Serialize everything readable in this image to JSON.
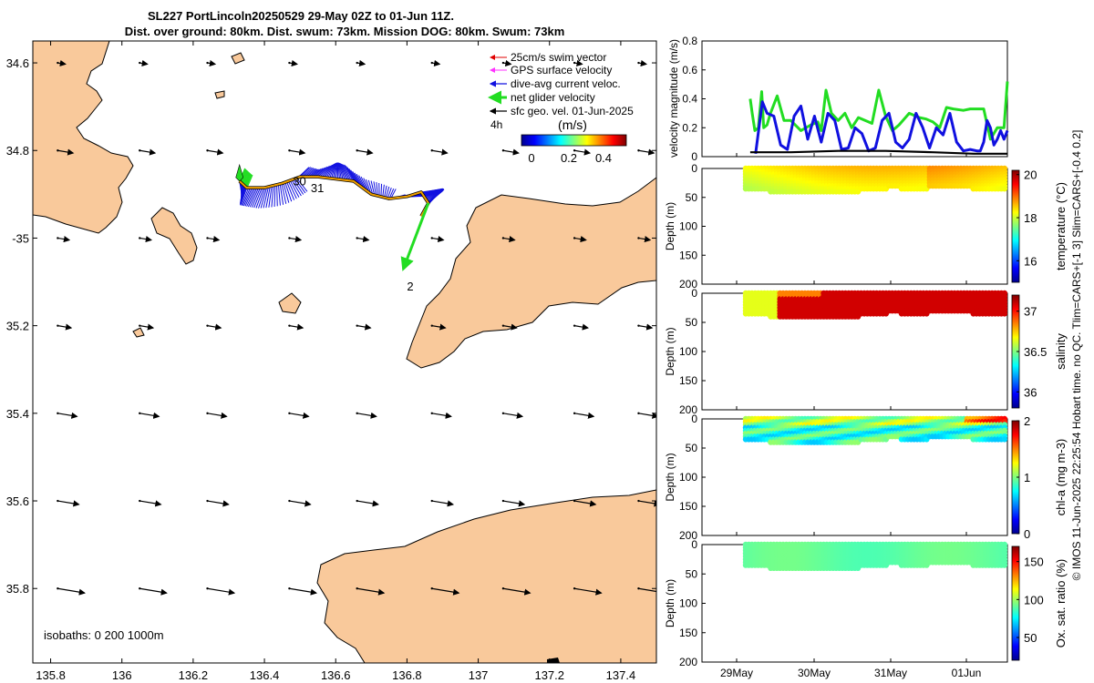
{
  "header": {
    "title_line1": "SL227 PortLincoln20250529 29-May 02Z to 01-Jun 11Z.",
    "title_line2": "Dist. over ground: 80km. Dist. swum: 73km. Mission DOG: 80km. Swum: 73km"
  },
  "side_note": "© IMOS 11-Jun-2025 22:25:54 Hobart time. no QC. Tlim=CARS+[-1 3] Slim=CARS+[-0.4 0.2]",
  "colors": {
    "land": "#f9c99b",
    "swim": "#e00000",
    "gps": "#ff33ff",
    "current": "#1010e0",
    "net": "#22dd22",
    "geo": "#000000",
    "track": "#f0a000"
  },
  "chart_data": [
    {
      "type": "map",
      "title": "SL227 PortLincoln20250529 29-May 02Z to 01-Jun 11Z.",
      "xlim": [
        135.75,
        137.5
      ],
      "ylim": [
        -35.97,
        -34.55
      ],
      "xticks": [
        135.8,
        136,
        136.2,
        136.4,
        136.6,
        136.8,
        137,
        137.2,
        137.4
      ],
      "xtick_labels": [
        "135.8",
        "136",
        "136.2",
        "136.4",
        "136.6",
        "136.8",
        "137",
        "137.2",
        "137.4"
      ],
      "yticks": [
        -34.6,
        -34.8,
        -35,
        -35.2,
        -35.4,
        -35.6,
        -35.8
      ],
      "ytick_labels": [
        "34.6",
        "34.8",
        "-35",
        "35.2",
        "35.4",
        "35.6",
        "35.8"
      ],
      "legend": {
        "items": [
          "25cm/s swim vector",
          "GPS surface velocity",
          "dive-avg current veloc.",
          "net glider velocity",
          "sfc geo. vel. 01-Jun-2025"
        ],
        "interval_label": "4h",
        "colorbar_label": "(m/s)",
        "colorbar_ticks": [
          "0",
          "0.2",
          "0.4"
        ],
        "colorbar_range": [
          -0.05,
          0.55
        ]
      },
      "isobaths_label": "isobaths: 0   200  1000m",
      "track": [
        [
          136.33,
          -34.87
        ],
        [
          136.35,
          -34.885
        ],
        [
          136.4,
          -34.885
        ],
        [
          136.45,
          -34.875
        ],
        [
          136.5,
          -34.86
        ],
        [
          136.55,
          -34.86
        ],
        [
          136.6,
          -34.865
        ],
        [
          136.65,
          -34.87
        ],
        [
          136.7,
          -34.9
        ],
        [
          136.75,
          -34.91
        ],
        [
          136.8,
          -34.905
        ],
        [
          136.84,
          -34.895
        ],
        [
          136.86,
          -34.92
        ],
        [
          136.84,
          -34.95
        ]
      ],
      "day_labels": [
        {
          "text": "30",
          "lon": 136.48,
          "lat": -34.88
        },
        {
          "text": "31",
          "lon": 136.53,
          "lat": -34.895
        },
        {
          "text": "2",
          "lon": 136.8,
          "lat": -35.12
        }
      ],
      "geo_arrow_lons": [
        135.82,
        136.05,
        136.24,
        136.47,
        136.66,
        136.87,
        137.07,
        137.27,
        137.45
      ],
      "geo_arrow_lats": [
        -34.6,
        -34.8,
        -35.0,
        -35.2,
        -35.4,
        -35.6,
        -35.8
      ],
      "geo_arrow_scale": [
        0.02,
        0.04,
        0.03,
        0.035,
        0.05,
        0.055,
        0.07
      ],
      "net_arrow": {
        "from": [
          136.86,
          -34.92
        ],
        "to": [
          136.79,
          -35.07
        ]
      }
    },
    {
      "type": "line",
      "ylabel": "velocity magnitude (m/s)",
      "ylim": [
        0,
        0.8
      ],
      "yticks": [
        0,
        0.2,
        0.4,
        0.6,
        0.8
      ],
      "ytick_labels": [
        "0",
        "0.2",
        "0.4",
        "0.6",
        "0.8"
      ],
      "xlim": [
        0,
        4
      ],
      "series": [
        {
          "name": "net glider velocity",
          "color": "#22dd22",
          "x": [
            0.2,
            0.23,
            0.27,
            0.32,
            0.37,
            0.4,
            0.45,
            0.5,
            0.6,
            0.7,
            0.8,
            0.95,
            1.1,
            1.2,
            1.25,
            1.32,
            1.4,
            1.5,
            1.6,
            1.7,
            1.8,
            2.0,
            2.1,
            2.2,
            2.3,
            2.35,
            2.4,
            2.55,
            2.7,
            2.8,
            2.9,
            3.0,
            3.1,
            3.2,
            3.35,
            3.45,
            3.55,
            3.65,
            3.75,
            3.85,
            3.95,
            4.0
          ],
          "values": [
            0.4,
            0.3,
            0.18,
            0.2,
            0.45,
            0.2,
            0.22,
            0.3,
            0.42,
            0.25,
            0.25,
            0.18,
            0.22,
            0.24,
            0.18,
            0.46,
            0.3,
            0.25,
            0.3,
            0.2,
            0.27,
            0.23,
            0.46,
            0.28,
            0.18,
            0.2,
            0.22,
            0.3,
            0.27,
            0.26,
            0.24,
            0.2,
            0.34,
            0.33,
            0.32,
            0.33,
            0.33,
            0.33,
            0.12,
            0.2,
            0.2,
            0.52
          ]
        },
        {
          "name": "dive-avg current veloc.",
          "color": "#1010e0",
          "x": [
            0.28,
            0.33,
            0.38,
            0.45,
            0.55,
            0.65,
            0.75,
            0.85,
            0.95,
            1.05,
            1.15,
            1.25,
            1.35,
            1.45,
            1.55,
            1.65,
            1.75,
            1.85,
            1.95,
            2.05,
            2.15,
            2.25,
            2.35,
            2.45,
            2.55,
            2.65,
            2.75,
            2.85,
            2.95,
            3.05,
            3.15,
            3.25,
            3.35,
            3.45,
            3.55,
            3.6,
            3.65,
            3.7,
            3.75,
            3.8,
            3.85,
            3.9,
            3.95,
            4.0
          ],
          "values": [
            0.02,
            0.2,
            0.38,
            0.3,
            0.28,
            0.08,
            0.05,
            0.28,
            0.35,
            0.12,
            0.28,
            0.1,
            0.3,
            0.25,
            0.05,
            0.06,
            0.2,
            0.16,
            0.04,
            0.06,
            0.25,
            0.3,
            0.1,
            0.06,
            0.12,
            0.3,
            0.2,
            0.06,
            0.2,
            0.15,
            0.3,
            0.1,
            0.04,
            0.05,
            0.04,
            0.04,
            0.1,
            0.25,
            0.2,
            0.08,
            0.12,
            0.18,
            0.12,
            0.18
          ]
        },
        {
          "name": "surface/black",
          "color": "#000000",
          "x": [
            0.2,
            0.8,
            1.5,
            2.2,
            2.9,
            3.5,
            4.0
          ],
          "values": [
            0.03,
            0.03,
            0.04,
            0.04,
            0.03,
            0.02,
            0.02
          ]
        }
      ]
    },
    {
      "type": "heatmap",
      "variable": "temperature",
      "clabel": "temperature (°C)",
      "ylabel": "Depth (m)",
      "yticks": [
        0,
        50,
        100,
        150,
        200
      ],
      "ytick_labels": [
        "0",
        "50",
        "100",
        "150",
        "200"
      ],
      "ctick_labels": [
        "16",
        "18",
        "20"
      ],
      "cticks": [
        16,
        18,
        20
      ],
      "clim": [
        15,
        20.2
      ]
    },
    {
      "type": "heatmap",
      "variable": "salinity",
      "clabel": "salinity",
      "ylabel": "Depth (m)",
      "yticks": [
        0,
        50,
        100,
        150,
        200
      ],
      "ytick_labels": [
        "0",
        "50",
        "100",
        "150",
        "200"
      ],
      "ctick_labels": [
        "36",
        "36.5",
        "37"
      ],
      "cticks": [
        36,
        36.5,
        37
      ],
      "clim": [
        35.8,
        37.2
      ]
    },
    {
      "type": "heatmap",
      "variable": "chl-a",
      "clabel": "chl-a (mg m-3)",
      "ylabel": "Depth (m)",
      "yticks": [
        0,
        50,
        100,
        150,
        200
      ],
      "ytick_labels": [
        "0",
        "50",
        "100",
        "150",
        "200"
      ],
      "ctick_labels": [
        "0",
        "1",
        "2"
      ],
      "cticks": [
        0,
        1,
        2
      ],
      "clim": [
        0,
        2
      ]
    },
    {
      "type": "heatmap",
      "variable": "oxygen",
      "clabel": "Ox. sat. ratio (%)",
      "ylabel": "Depth (m)",
      "yticks": [
        0,
        50,
        100,
        150,
        200
      ],
      "ytick_labels": [
        "0",
        "50",
        "100",
        "150",
        "200"
      ],
      "ctick_labels": [
        "50",
        "100",
        "150"
      ],
      "cticks": [
        50,
        100,
        150
      ],
      "clim": [
        20,
        170
      ]
    }
  ],
  "time_axis": {
    "labels": [
      "29May",
      "30May",
      "31May",
      "01Jun"
    ],
    "positions": [
      0,
      1,
      2,
      3
    ]
  }
}
